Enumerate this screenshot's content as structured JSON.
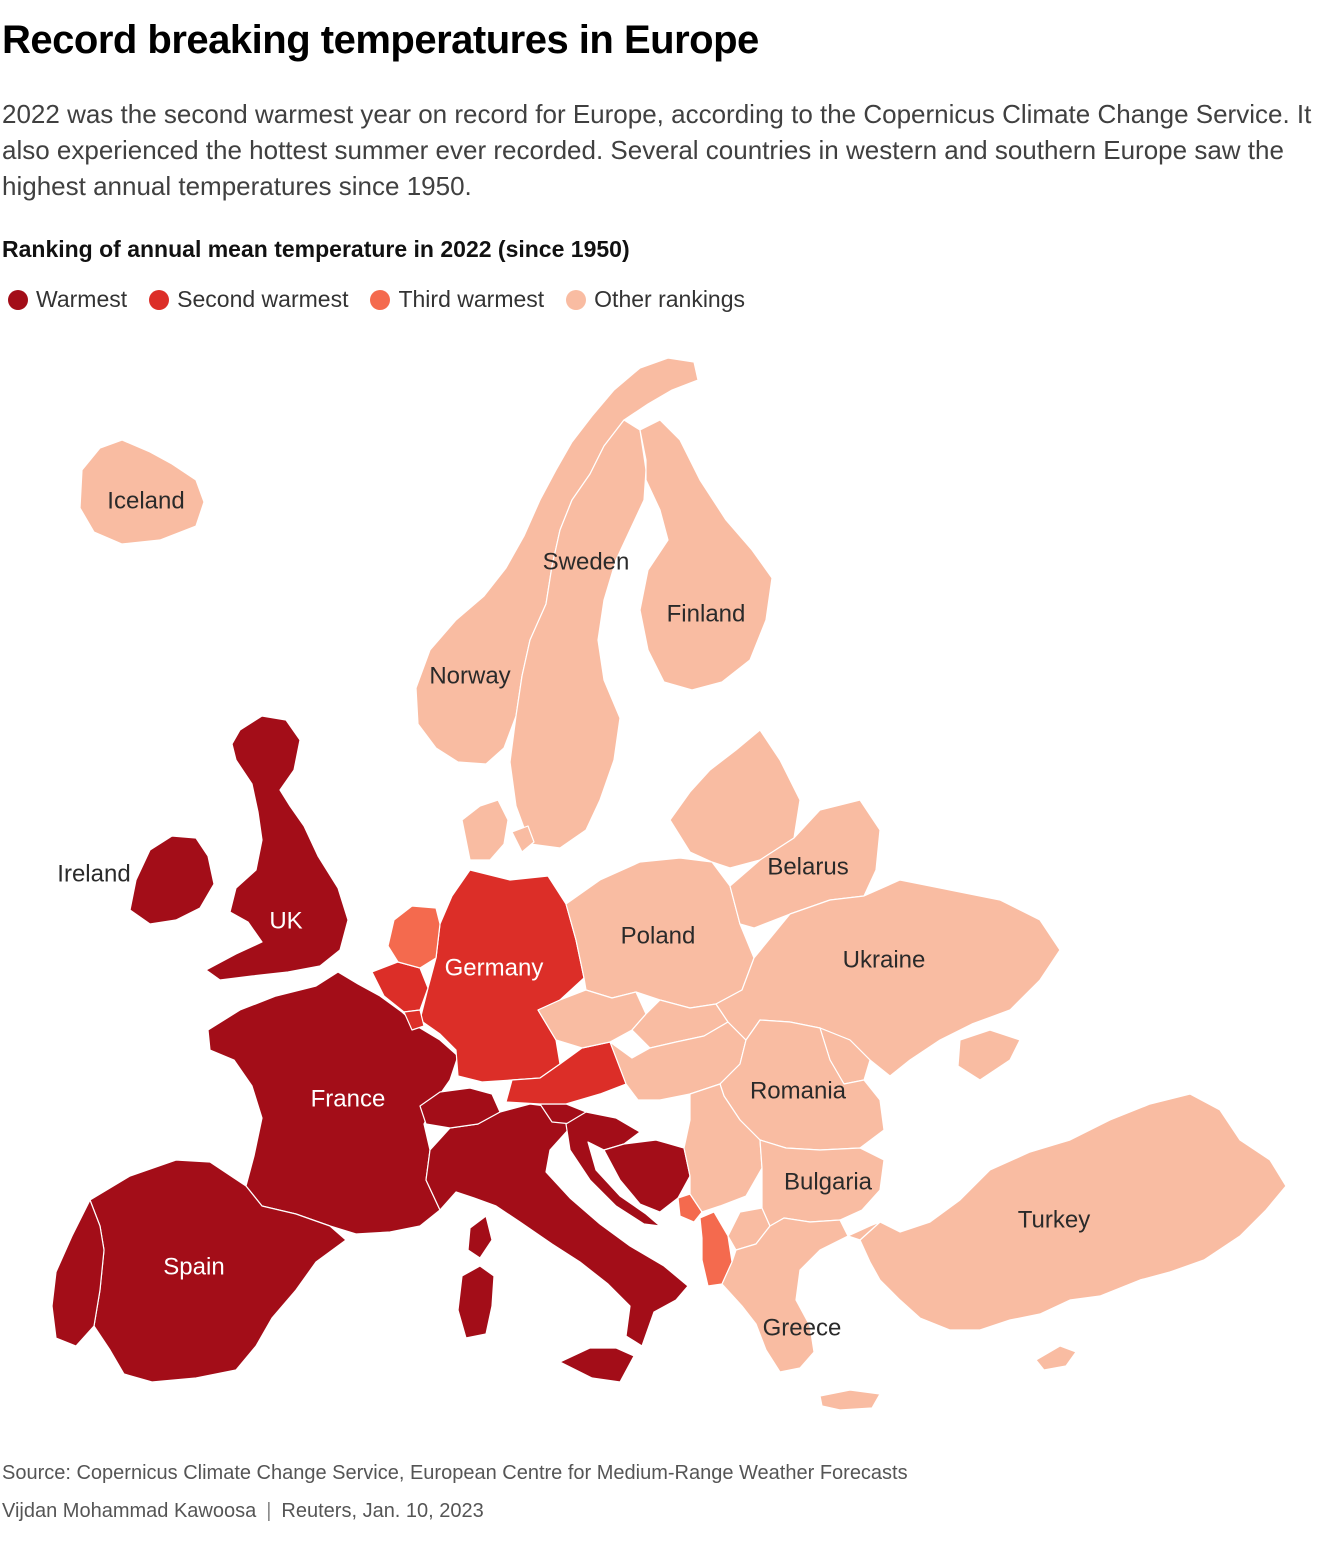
{
  "header": {
    "title": "Record breaking temperatures in Europe",
    "subtitle": "2022 was the second warmest year on record for Europe, according to the Copernicus Climate Change Service. It also experienced the hottest summer ever recorded. Several countries in western and southern Europe saw the highest annual temperatures since 1950."
  },
  "map": {
    "heading": "Ranking of annual mean temperature in 2022 (since 1950)",
    "legend": [
      {
        "key": "warmest",
        "label": "Warmest",
        "color": "#a30d18"
      },
      {
        "key": "second",
        "label": "Second warmest",
        "color": "#dc2e28"
      },
      {
        "key": "third",
        "label": "Third warmest",
        "color": "#f46a4e"
      },
      {
        "key": "other",
        "label": "Other rankings",
        "color": "#f9bca2"
      }
    ],
    "countries": [
      {
        "name": "Iceland",
        "ranking": "other",
        "label": "Iceland"
      },
      {
        "name": "Norway",
        "ranking": "other",
        "label": "Norway"
      },
      {
        "name": "Sweden",
        "ranking": "other",
        "label": "Sweden"
      },
      {
        "name": "Finland",
        "ranking": "other",
        "label": "Finland"
      },
      {
        "name": "Ireland",
        "ranking": "warmest",
        "label": "Ireland"
      },
      {
        "name": "UK",
        "ranking": "warmest",
        "label": "UK"
      },
      {
        "name": "France",
        "ranking": "warmest",
        "label": "France"
      },
      {
        "name": "Spain",
        "ranking": "warmest",
        "label": "Spain"
      },
      {
        "name": "Portugal",
        "ranking": "warmest",
        "label": ""
      },
      {
        "name": "Italy",
        "ranking": "warmest",
        "label": ""
      },
      {
        "name": "Switzerland",
        "ranking": "warmest",
        "label": ""
      },
      {
        "name": "Slovenia",
        "ranking": "warmest",
        "label": ""
      },
      {
        "name": "Croatia",
        "ranking": "warmest",
        "label": ""
      },
      {
        "name": "Bosnia and Herzegovina",
        "ranking": "warmest",
        "label": ""
      },
      {
        "name": "Germany",
        "ranking": "second",
        "label": "Germany"
      },
      {
        "name": "Belgium",
        "ranking": "second",
        "label": ""
      },
      {
        "name": "Luxembourg",
        "ranking": "second",
        "label": ""
      },
      {
        "name": "Austria",
        "ranking": "second",
        "label": ""
      },
      {
        "name": "Netherlands",
        "ranking": "third",
        "label": ""
      },
      {
        "name": "Montenegro",
        "ranking": "third",
        "label": ""
      },
      {
        "name": "Albania",
        "ranking": "third",
        "label": ""
      },
      {
        "name": "Denmark",
        "ranking": "other",
        "label": ""
      },
      {
        "name": "Poland",
        "ranking": "other",
        "label": "Poland"
      },
      {
        "name": "Czechia",
        "ranking": "other",
        "label": ""
      },
      {
        "name": "Slovakia",
        "ranking": "other",
        "label": ""
      },
      {
        "name": "Hungary",
        "ranking": "other",
        "label": ""
      },
      {
        "name": "Baltic states",
        "ranking": "other",
        "label": ""
      },
      {
        "name": "Belarus",
        "ranking": "other",
        "label": "Belarus"
      },
      {
        "name": "Ukraine",
        "ranking": "other",
        "label": "Ukraine"
      },
      {
        "name": "Moldova",
        "ranking": "other",
        "label": ""
      },
      {
        "name": "Romania",
        "ranking": "other",
        "label": "Romania"
      },
      {
        "name": "Serbia",
        "ranking": "other",
        "label": ""
      },
      {
        "name": "North Macedonia",
        "ranking": "other",
        "label": ""
      },
      {
        "name": "Bulgaria",
        "ranking": "other",
        "label": "Bulgaria"
      },
      {
        "name": "Greece",
        "ranking": "other",
        "label": "Greece"
      },
      {
        "name": "Turkey",
        "ranking": "other",
        "label": "Turkey"
      },
      {
        "name": "Cyprus",
        "ranking": "other",
        "label": ""
      }
    ]
  },
  "footer": {
    "source": "Source: Copernicus Climate Change Service, European Centre for Medium-Range Weather Forecasts",
    "author": "Vijdan Mohammad Kawoosa",
    "separator": "|",
    "publication": "Reuters, Jan. 10, 2023"
  }
}
